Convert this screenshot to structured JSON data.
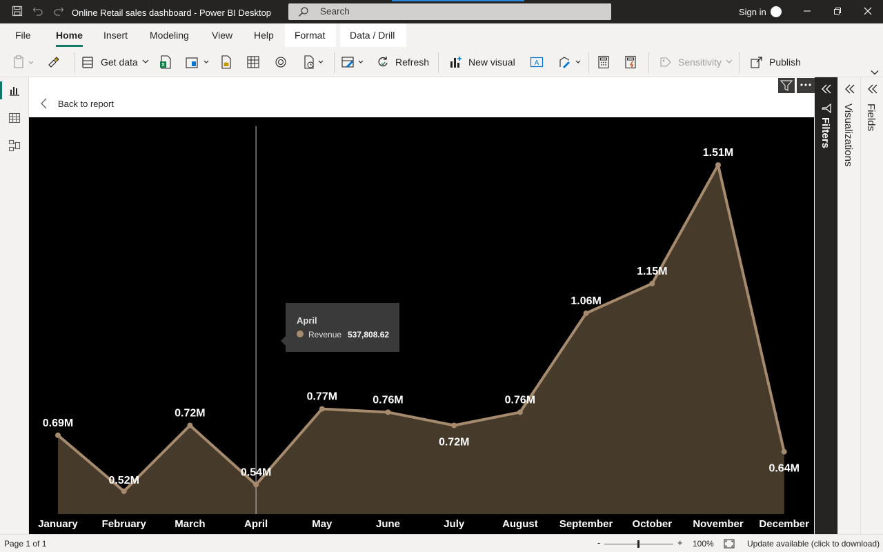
{
  "titlebar": {
    "title": "Online Retail sales dashboard - Power BI Desktop",
    "search_placeholder": "Search",
    "sign_in": "Sign in",
    "icons": [
      "save-icon",
      "undo-icon",
      "redo-icon",
      "search-icon",
      "minimize-icon",
      "restore-icon",
      "close-icon"
    ]
  },
  "tabs": {
    "file": "File",
    "home": "Home",
    "insert": "Insert",
    "modeling": "Modeling",
    "view": "View",
    "help": "Help",
    "format": "Format",
    "data_drill": "Data / Drill",
    "active": "Home"
  },
  "ribbon": {
    "get_data": "Get data",
    "refresh": "Refresh",
    "new_visual": "New visual",
    "sensitivity": "Sensitivity",
    "publish": "Publish"
  },
  "canvas": {
    "back_label": "Back to report"
  },
  "chart_data": {
    "type": "area",
    "categories": [
      "January",
      "February",
      "March",
      "April",
      "May",
      "June",
      "July",
      "August",
      "September",
      "October",
      "November",
      "December"
    ],
    "series": [
      {
        "name": "Revenue",
        "values": [
          0.69,
          0.52,
          0.72,
          0.54,
          0.77,
          0.76,
          0.72,
          0.76,
          1.06,
          1.15,
          1.51,
          0.64
        ],
        "labels": [
          "0.69M",
          "0.52M",
          "0.72M",
          "0.54M",
          "0.77M",
          "0.76M",
          "0.72M",
          "0.76M",
          "1.06M",
          "1.15M",
          "1.51M",
          "0.64M"
        ]
      }
    ],
    "unit": "M",
    "colors": {
      "line": "#a68a6d",
      "area": "#463a2b",
      "background": "#000000"
    },
    "highlighted_category": "April",
    "grid": false,
    "legend": "none"
  },
  "tooltip": {
    "title": "April",
    "series": "Revenue",
    "value": "537,808.62"
  },
  "panes": {
    "filters": "Filters",
    "visualizations": "Visualizations",
    "fields": "Fields"
  },
  "status": {
    "page": "Page 1 of 1",
    "zoom_minus": "-",
    "zoom_plus": "+",
    "zoom": "100%",
    "update": "Update available (click to download)"
  }
}
